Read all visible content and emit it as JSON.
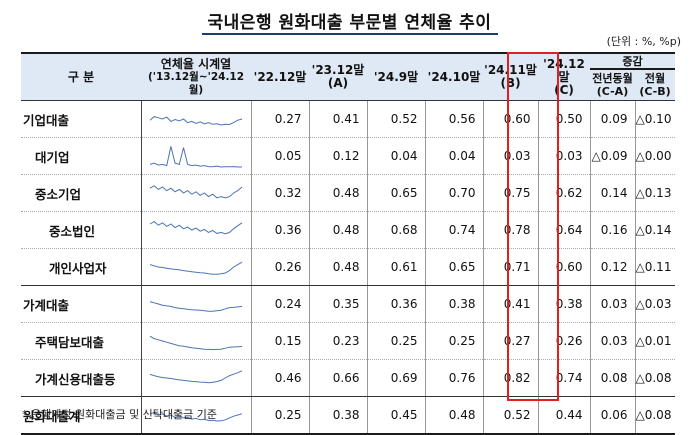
{
  "title": "국내은행 원화대출 부문별 연체율 추이",
  "unit": "(단위 : %, %p)",
  "headers": {
    "category": "구 분",
    "series_line1": "연체율 시계열",
    "series_line2": "('13.12월~'24.12월)",
    "col1": "'22.12말",
    "col2_line1": "'23.12말",
    "col2_line2": "(A)",
    "col3": "'24.9말",
    "col4": "'24.10말",
    "col5_line1": "'24.11말",
    "col5_line2": "(B)",
    "col6_line1": "'24.12말",
    "col6_line2": "(C)",
    "change": "증감",
    "yoy_line1": "전년동월",
    "yoy_line2": "(C-A)",
    "mom_line1": "전월",
    "mom_line2": "(C-B)"
  },
  "rows": [
    {
      "label": "기업대출",
      "v": [
        "0.27",
        "0.41",
        "0.52",
        "0.56",
        "0.60",
        "0.50",
        "0.09",
        "△0.10"
      ],
      "trend": [
        0.45,
        0.6,
        0.55,
        0.5,
        0.58,
        0.4,
        0.48,
        0.42,
        0.5,
        0.35,
        0.4,
        0.32,
        0.38,
        0.3,
        0.35,
        0.28,
        0.3,
        0.25,
        0.28,
        0.27,
        0.35,
        0.45,
        0.5
      ]
    },
    {
      "label": "대기업",
      "v": [
        "0.05",
        "0.12",
        "0.04",
        "0.04",
        "0.03",
        "0.03",
        "△0.09",
        "△0.00"
      ],
      "trend": [
        0.15,
        0.2,
        0.12,
        0.15,
        0.1,
        0.9,
        0.2,
        0.15,
        0.85,
        0.15,
        0.1,
        0.12,
        0.08,
        0.1,
        0.06,
        0.05,
        0.08,
        0.04,
        0.05,
        0.05,
        0.06,
        0.04,
        0.04
      ]
    },
    {
      "label": "중소기업",
      "v": [
        "0.32",
        "0.48",
        "0.65",
        "0.70",
        "0.75",
        "0.62",
        "0.14",
        "△0.13"
      ],
      "trend": [
        0.7,
        0.8,
        0.65,
        0.75,
        0.6,
        0.7,
        0.55,
        0.65,
        0.5,
        0.6,
        0.45,
        0.55,
        0.4,
        0.5,
        0.35,
        0.45,
        0.3,
        0.35,
        0.3,
        0.35,
        0.5,
        0.6,
        0.75
      ]
    },
    {
      "label": "중소법인",
      "v": [
        "0.36",
        "0.48",
        "0.68",
        "0.74",
        "0.78",
        "0.64",
        "0.16",
        "△0.14"
      ],
      "trend": [
        0.75,
        0.85,
        0.7,
        0.8,
        0.65,
        0.75,
        0.6,
        0.7,
        0.55,
        0.62,
        0.5,
        0.58,
        0.45,
        0.52,
        0.4,
        0.48,
        0.36,
        0.4,
        0.34,
        0.4,
        0.55,
        0.68,
        0.8
      ]
    },
    {
      "label": "개인사업자",
      "v": [
        "0.26",
        "0.48",
        "0.61",
        "0.65",
        "0.71",
        "0.60",
        "0.12",
        "△0.11"
      ],
      "trend": [
        0.6,
        0.55,
        0.5,
        0.48,
        0.45,
        0.42,
        0.4,
        0.38,
        0.35,
        0.33,
        0.3,
        0.28,
        0.26,
        0.25,
        0.22,
        0.2,
        0.2,
        0.22,
        0.25,
        0.35,
        0.5,
        0.6,
        0.7
      ]
    },
    {
      "label": "가계대출",
      "v": [
        "0.24",
        "0.35",
        "0.36",
        "0.38",
        "0.41",
        "0.38",
        "0.03",
        "△0.03"
      ],
      "trend": [
        0.6,
        0.55,
        0.5,
        0.45,
        0.42,
        0.4,
        0.35,
        0.32,
        0.3,
        0.28,
        0.26,
        0.25,
        0.24,
        0.22,
        0.2,
        0.2,
        0.22,
        0.24,
        0.3,
        0.35,
        0.36,
        0.38,
        0.4
      ]
    },
    {
      "label": "주택담보대출",
      "v": [
        "0.15",
        "0.23",
        "0.25",
        "0.25",
        "0.27",
        "0.26",
        "0.03",
        "△0.01"
      ],
      "trend": [
        0.7,
        0.6,
        0.55,
        0.5,
        0.45,
        0.4,
        0.35,
        0.3,
        0.28,
        0.25,
        0.22,
        0.2,
        0.18,
        0.16,
        0.15,
        0.14,
        0.15,
        0.16,
        0.2,
        0.24,
        0.25,
        0.26,
        0.27
      ]
    },
    {
      "label": "가계신용대출등",
      "v": [
        "0.46",
        "0.66",
        "0.69",
        "0.76",
        "0.82",
        "0.74",
        "0.08",
        "△0.08"
      ],
      "trend": [
        0.65,
        0.6,
        0.55,
        0.52,
        0.5,
        0.48,
        0.45,
        0.42,
        0.4,
        0.38,
        0.36,
        0.35,
        0.33,
        0.32,
        0.3,
        0.32,
        0.35,
        0.4,
        0.5,
        0.6,
        0.66,
        0.72,
        0.8
      ]
    },
    {
      "label": "원화대출계",
      "v": [
        "0.25",
        "0.38",
        "0.45",
        "0.48",
        "0.52",
        "0.44",
        "0.06",
        "△0.08"
      ],
      "trend": [
        0.55,
        0.6,
        0.5,
        0.55,
        0.45,
        0.5,
        0.4,
        0.45,
        0.38,
        0.4,
        0.33,
        0.36,
        0.3,
        0.32,
        0.27,
        0.28,
        0.25,
        0.26,
        0.3,
        0.38,
        0.45,
        0.5,
        0.55
      ]
    }
  ],
  "note": "* 은행계정 원화대출금 및 신탁대출금 기준"
}
